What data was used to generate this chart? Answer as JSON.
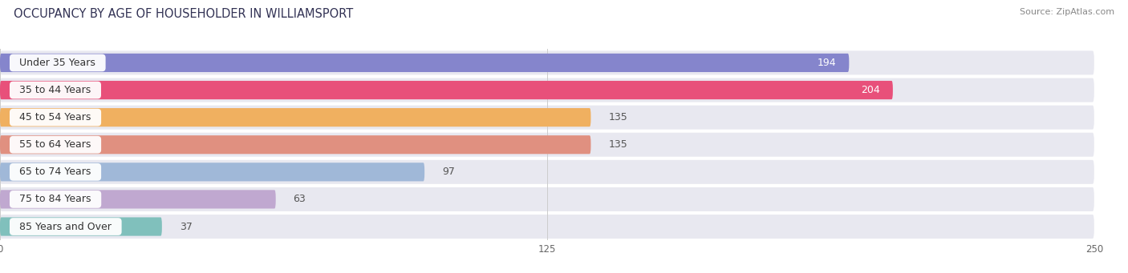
{
  "title": "OCCUPANCY BY AGE OF HOUSEHOLDER IN WILLIAMSPORT",
  "source": "Source: ZipAtlas.com",
  "categories": [
    "Under 35 Years",
    "35 to 44 Years",
    "45 to 54 Years",
    "55 to 64 Years",
    "65 to 74 Years",
    "75 to 84 Years",
    "85 Years and Over"
  ],
  "values": [
    194,
    204,
    135,
    135,
    97,
    63,
    37
  ],
  "bar_colors": [
    "#8585cc",
    "#e8507a",
    "#f0b060",
    "#e09080",
    "#a0b8d8",
    "#c0a8d0",
    "#80c0bc"
  ],
  "row_bg_color": "#e8e8f0",
  "xlim": [
    0,
    250
  ],
  "xticks": [
    0,
    125,
    250
  ],
  "title_fontsize": 10.5,
  "source_fontsize": 8,
  "label_fontsize": 9,
  "value_fontsize": 9,
  "background_color": "#ffffff",
  "inside_value_threshold": 185
}
